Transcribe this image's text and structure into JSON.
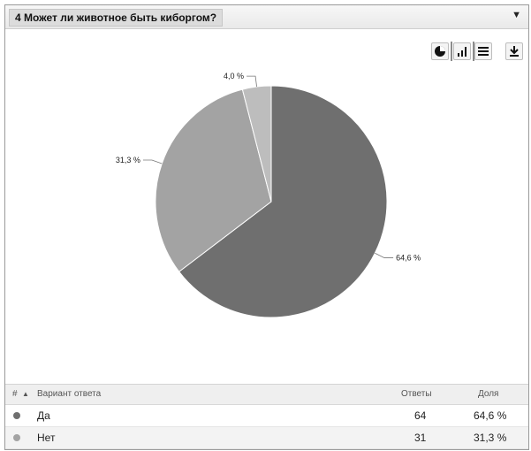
{
  "panel": {
    "title": "4 Может ли животное быть киборгом?",
    "dropdown_icon": "caret-down-icon"
  },
  "toolbar": {
    "buttons": [
      "pie-chart-icon",
      "bar-chart-icon",
      "table-icon",
      "download-icon"
    ]
  },
  "chart_data": {
    "type": "pie",
    "categories": [
      "Да",
      "Нет",
      ""
    ],
    "values": [
      64.6,
      31.3,
      4.0
    ],
    "labels": [
      "64,6 %",
      "31,3 %",
      "4,0 %"
    ],
    "colors": [
      "#6f6f6f",
      "#a3a3a3",
      "#bdbdbd"
    ]
  },
  "table": {
    "headers": {
      "num": "#",
      "variant": "Вариант ответа",
      "answers": "Ответы",
      "share": "Доля"
    },
    "rows": [
      {
        "variant": "Да",
        "answers": "64",
        "share": "64,6 %",
        "color": "#6f6f6f"
      },
      {
        "variant": "Нет",
        "answers": "31",
        "share": "31,3 %",
        "color": "#a3a3a3"
      }
    ]
  }
}
